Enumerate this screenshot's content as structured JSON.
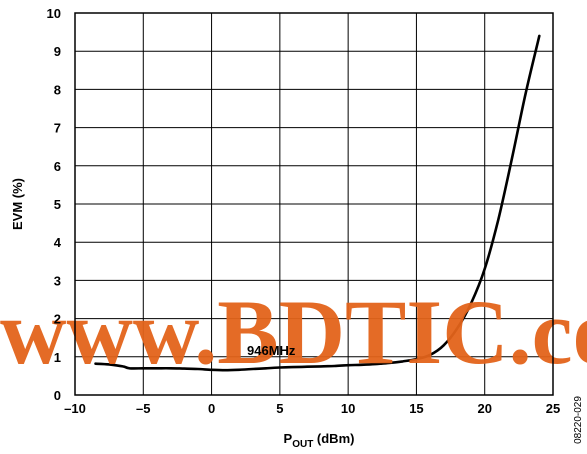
{
  "chart_data": {
    "type": "line",
    "xlabel_main": "P",
    "xlabel_sub": "OUT",
    "xlabel_unit": " (dBm)",
    "ylabel": "EVM (%)",
    "xlim": [
      -10,
      25
    ],
    "ylim": [
      0,
      10
    ],
    "x_ticks": [
      -10,
      -5,
      0,
      5,
      10,
      15,
      20,
      25
    ],
    "x_tick_labels": [
      "–10",
      "–5",
      "0",
      "5",
      "10",
      "15",
      "20",
      "25"
    ],
    "y_ticks": [
      0,
      1,
      2,
      3,
      4,
      5,
      6,
      7,
      8,
      9,
      10
    ],
    "y_tick_labels": [
      "0",
      "1",
      "2",
      "3",
      "4",
      "5",
      "6",
      "7",
      "8",
      "9",
      "10"
    ],
    "grid": true,
    "annotation": "946MHz",
    "figure_number": "08220-029",
    "watermark": "www.BDTIC.com",
    "watermark_color": "#e3631a",
    "series": [
      {
        "color": "#000000",
        "x": [
          -8.5,
          -7.5,
          -6.5,
          -6,
          -5,
          -4,
          -3,
          -2,
          -1,
          0,
          1,
          2,
          3,
          4,
          5,
          6,
          7,
          8,
          9,
          10,
          11,
          12,
          13,
          14,
          15,
          16,
          17,
          18,
          19,
          20,
          21,
          22,
          23,
          24
        ],
        "y": [
          0.82,
          0.8,
          0.75,
          0.7,
          0.7,
          0.7,
          0.7,
          0.69,
          0.68,
          0.66,
          0.65,
          0.66,
          0.68,
          0.7,
          0.72,
          0.73,
          0.74,
          0.75,
          0.76,
          0.78,
          0.79,
          0.81,
          0.84,
          0.88,
          0.94,
          1.05,
          1.3,
          1.75,
          2.4,
          3.3,
          4.6,
          6.2,
          7.9,
          9.4
        ]
      }
    ]
  }
}
